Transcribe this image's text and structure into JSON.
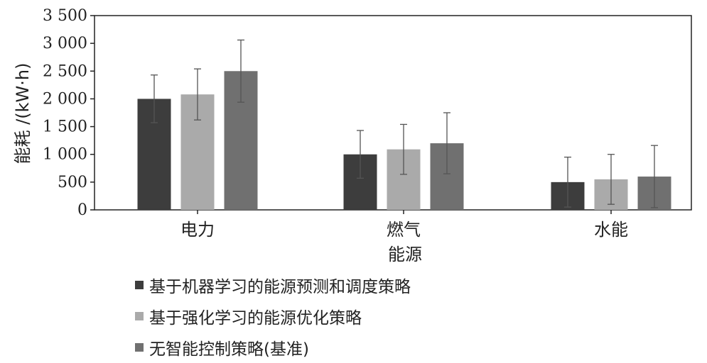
{
  "chart_data": {
    "type": "bar",
    "categories": [
      "电力",
      "燃气",
      "水能"
    ],
    "xlabel": "能源",
    "ylabel": "能耗 /(kW·h)",
    "ylim": [
      0,
      3500
    ],
    "yticks": [
      {
        "value": 0,
        "label": "0"
      },
      {
        "value": 500,
        "label": "500"
      },
      {
        "value": 1000,
        "label": "1 000"
      },
      {
        "value": 1500,
        "label": "1 500"
      },
      {
        "value": 2000,
        "label": "2 000"
      },
      {
        "value": 2500,
        "label": "2 500"
      },
      {
        "value": 3000,
        "label": "3 000"
      },
      {
        "value": 3500,
        "label": "3 500"
      }
    ],
    "grid": false,
    "legend_position": "bottom-left",
    "series": [
      {
        "name": "基于机器学习的能源预测和调度策略",
        "color": "#3d3d3d",
        "values": [
          2000,
          1000,
          500
        ],
        "error": [
          430,
          430,
          450
        ]
      },
      {
        "name": "基于强化学习的能源优化策略",
        "color": "#aaaaaa",
        "values": [
          2080,
          1090,
          550
        ],
        "error": [
          460,
          450,
          450
        ]
      },
      {
        "name": "无智能控制策略(基准)",
        "color": "#707070",
        "values": [
          2500,
          1200,
          600
        ],
        "error": [
          560,
          550,
          560
        ]
      }
    ]
  }
}
